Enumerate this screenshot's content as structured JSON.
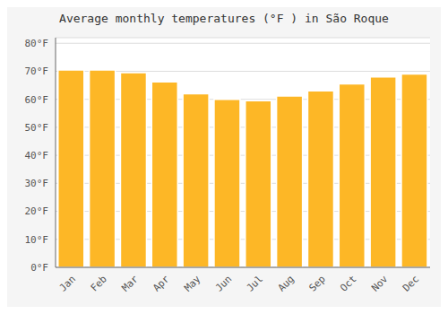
{
  "chart_data": {
    "type": "bar",
    "title": "Average monthly temperatures (°F ) in São Roque",
    "categories": [
      "Jan",
      "Feb",
      "Mar",
      "Apr",
      "May",
      "Jun",
      "Jul",
      "Aug",
      "Sep",
      "Oct",
      "Nov",
      "Dec"
    ],
    "values": [
      70.5,
      70.5,
      69.5,
      66.2,
      62.0,
      60.0,
      59.5,
      61.2,
      63.0,
      65.5,
      68.0,
      69.0
    ],
    "color": "#FDB726",
    "ylim": [
      0,
      82
    ],
    "yticks": [
      {
        "value": 0,
        "label": "0°F"
      },
      {
        "value": 10,
        "label": "10°F"
      },
      {
        "value": 20,
        "label": "20°F"
      },
      {
        "value": 30,
        "label": "30°F"
      },
      {
        "value": 40,
        "label": "40°F"
      },
      {
        "value": 50,
        "label": "50°F"
      },
      {
        "value": 60,
        "label": "60°F"
      },
      {
        "value": 70,
        "label": "70°F"
      },
      {
        "value": 80,
        "label": "80°F"
      }
    ],
    "grid": true
  }
}
